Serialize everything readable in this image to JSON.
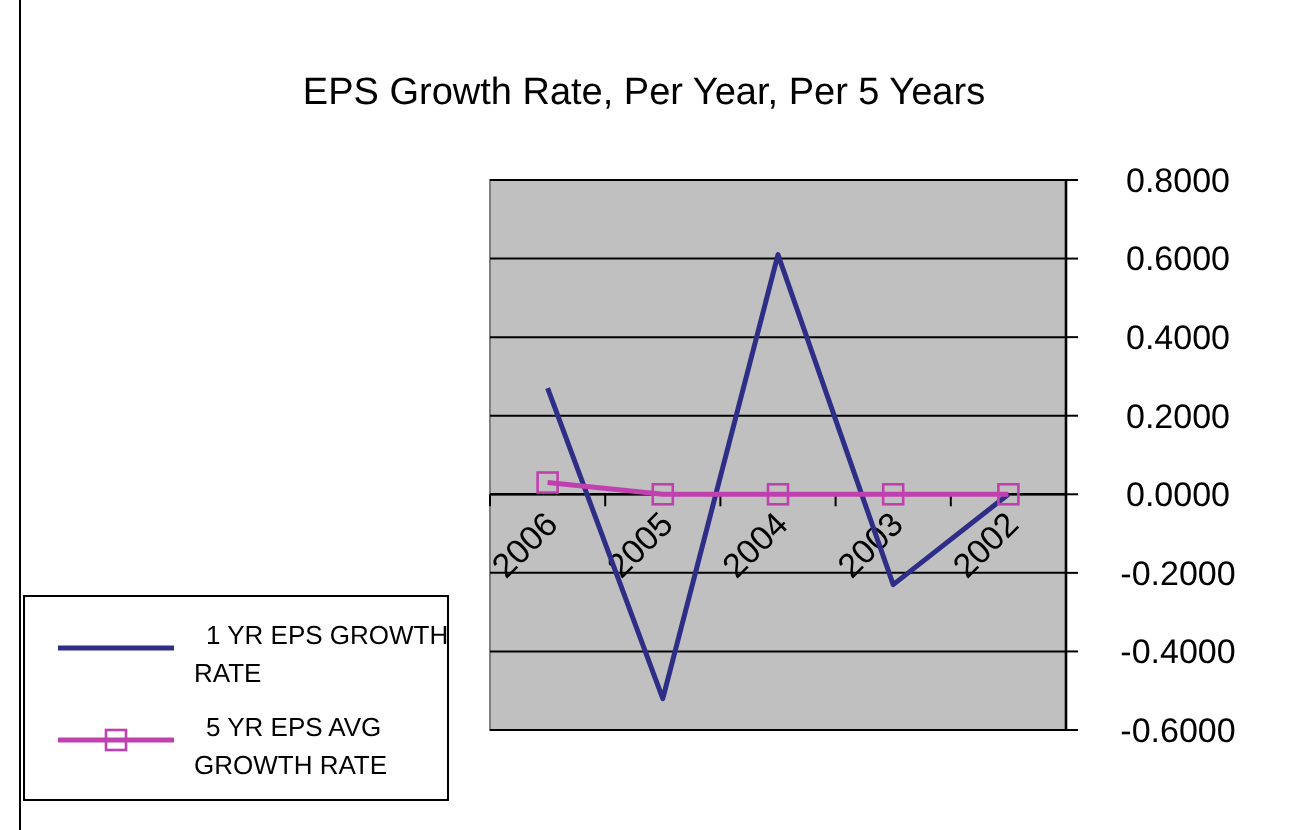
{
  "chart_data": {
    "type": "line",
    "title": "EPS Growth Rate, Per Year, Per 5 Years",
    "categories": [
      "2006",
      "2005",
      "2004",
      "2003",
      "2002"
    ],
    "series": [
      {
        "name": "1 YR EPS GROWTH RATE",
        "color": "#2e2e86",
        "values": [
          0.27,
          -0.52,
          0.61,
          -0.23,
          0.0
        ],
        "marker": "none"
      },
      {
        "name": "5 YR EPS AVG GROWTH RATE",
        "color": "#c040b0",
        "values": [
          0.03,
          0.0,
          0.0,
          0.0,
          0.0
        ],
        "marker": "square"
      }
    ],
    "ylim": [
      -0.6,
      0.8
    ],
    "yticks": [
      {
        "value": 0.8,
        "label": "0.8000"
      },
      {
        "value": 0.6,
        "label": "0.6000"
      },
      {
        "value": 0.4,
        "label": "0.4000"
      },
      {
        "value": 0.2,
        "label": "0.2000"
      },
      {
        "value": 0,
        "label": "0.0000"
      },
      {
        "value": -0.2,
        "label": "-0.2000"
      },
      {
        "value": -0.4,
        "label": "-0.4000"
      },
      {
        "value": -0.6,
        "label": "-0.6000"
      }
    ],
    "grid": "y",
    "legend": "bottom left"
  }
}
